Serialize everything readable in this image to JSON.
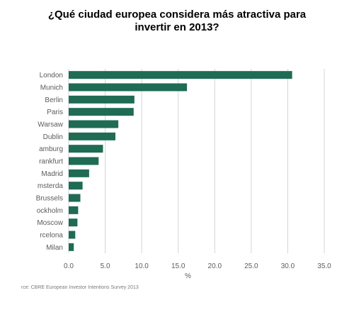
{
  "chart_data": {
    "type": "bar",
    "orientation": "horizontal",
    "title": "¿Qué ciudad europea considera más atractiva para\ninvertir en 2013?",
    "categories": [
      "London",
      "Munich",
      "Berlin",
      "Paris",
      "Warsaw",
      "Dublin",
      "Hamburg",
      "Frankfurt",
      "Madrid",
      "Amsterdam",
      "Brussels",
      "Stockholm",
      "Moscow",
      "Barcelona",
      "Milan"
    ],
    "visible_labels": [
      "London",
      "Munich",
      "Berlin",
      "Paris",
      "Warsaw",
      "Dublin",
      "amburg",
      "rankfurt",
      "Madrid",
      "msterda",
      "Brussels",
      "ockholm",
      "Moscow",
      "rcelona",
      "Milan"
    ],
    "values": [
      30.6,
      16.2,
      9.0,
      8.9,
      6.8,
      6.4,
      4.7,
      4.1,
      2.8,
      1.9,
      1.6,
      1.3,
      1.2,
      0.9,
      0.7
    ],
    "xlim": [
      0,
      35
    ],
    "xticks": [
      "0.0",
      "5.0",
      "10.0",
      "15.0",
      "20.0",
      "25.0",
      "30.0",
      "35.0"
    ],
    "xlabel": "%",
    "ylabel": "",
    "grid": "vertical",
    "bar_color": "#1f6b54",
    "grid_color": "#d4d4d4",
    "source": "rce: CBRE European Investor Intentions Survey 2013"
  }
}
